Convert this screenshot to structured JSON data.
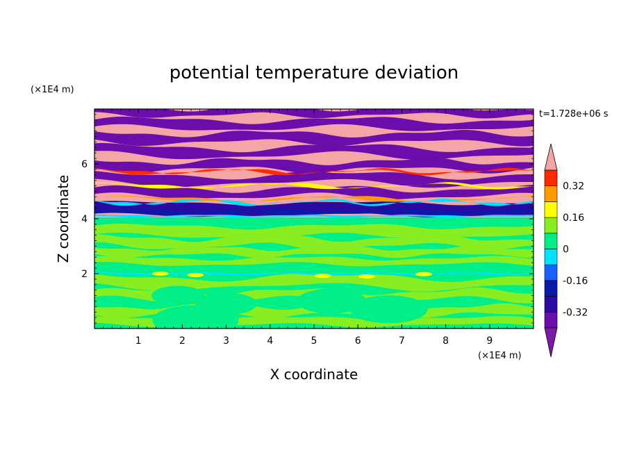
{
  "chart_data": {
    "type": "heatmap",
    "title": "potential temperature deviation",
    "xlabel": "X coordinate",
    "ylabel": "Z coordinate",
    "x_unit": "(×1E4 m)",
    "y_unit": "(×1E4 m)",
    "time_label": "t=1.728e+06 s",
    "xlim": [
      0,
      10
    ],
    "ylim": [
      0,
      8
    ],
    "x_ticks": [
      "1",
      "2",
      "3",
      "4",
      "5",
      "6",
      "7",
      "8",
      "9"
    ],
    "y_ticks": [
      "2",
      "4",
      "6"
    ],
    "layers": [
      {
        "z_from": 0,
        "z_to": 2,
        "description_value": "0 to 0.08 mixed with -0.08 to 0"
      },
      {
        "z_from": 2,
        "z_to": 4,
        "description_value": "0 to 0.08 mixed with -0.08 to 0"
      },
      {
        "z_from": 4,
        "z_to": 4.6,
        "description_value": "-0.4 to -0.32"
      },
      {
        "z_from": 4.6,
        "z_to": 8,
        "description_value": "alternating bands above 0.4 and below -0.4"
      }
    ],
    "colorbar": {
      "levels": [
        -0.4,
        -0.32,
        -0.24,
        -0.16,
        -0.08,
        0,
        0.08,
        0.16,
        0.24,
        0.32,
        0.4
      ],
      "tick_labels": [
        "-0.32",
        "-0.16",
        "0",
        "0.16",
        "0.32"
      ],
      "tick_values": [
        -0.32,
        -0.16,
        0,
        0.16,
        0.32
      ],
      "colors": [
        "#6a0dab",
        "#2a0aa0",
        "#0a1aa8",
        "#1a60ff",
        "#00e0ff",
        "#00ee88",
        "#88ee22",
        "#ffff00",
        "#ff9900",
        "#ff2a00",
        "#f4a6a6"
      ],
      "under_color": "#7a1aa8",
      "over_color": "#f4a6a6"
    }
  }
}
